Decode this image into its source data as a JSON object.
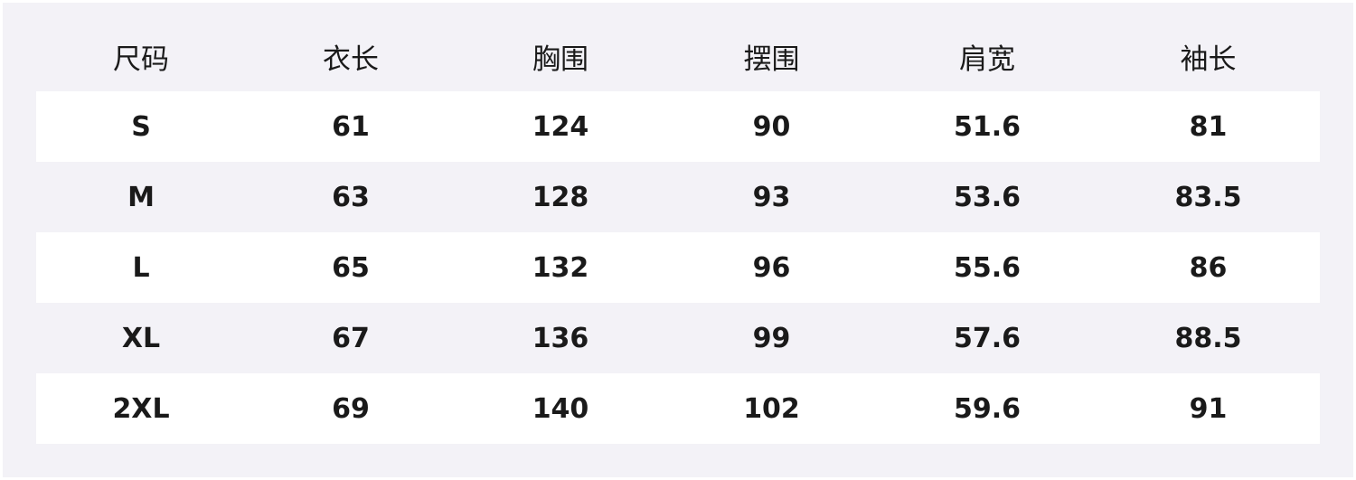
{
  "table": {
    "headers": [
      "尺码",
      "衣长",
      "胸围",
      "摆围",
      "肩宽",
      "袖长"
    ],
    "rows": [
      [
        "S",
        "61",
        "124",
        "90",
        "51.6",
        "81"
      ],
      [
        "M",
        "63",
        "128",
        "93",
        "53.6",
        "83.5"
      ],
      [
        "L",
        "65",
        "132",
        "96",
        "55.6",
        "86"
      ],
      [
        "XL",
        "67",
        "136",
        "99",
        "57.6",
        "88.5"
      ],
      [
        "2XL",
        "69",
        "140",
        "102",
        "59.6",
        "91"
      ]
    ]
  },
  "colors": {
    "background": "#f3f2f7",
    "stripe": "#ffffff",
    "text": "#1a1a1a"
  }
}
